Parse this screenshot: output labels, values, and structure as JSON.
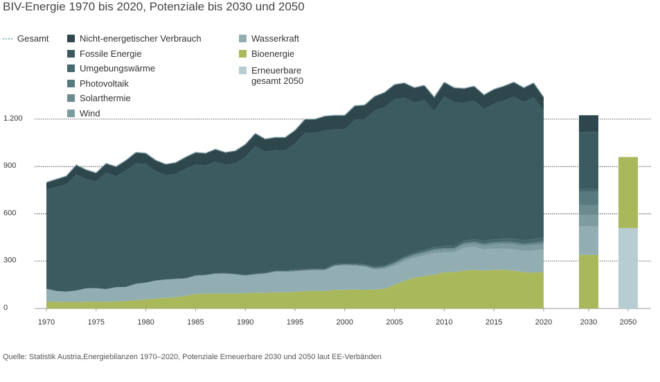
{
  "chart_data": {
    "type": "area",
    "title": "BIV-Energie 1970 bis 2020, Potenziale bis 2030 und 2050",
    "source": "Quelle: Statistik Austria,Energiebilanzen 1970–2020, Potenziale Erneuerbare 2030 und 2050 laut EE-Verbänden",
    "x": [
      1970,
      1971,
      1972,
      1973,
      1974,
      1975,
      1976,
      1977,
      1978,
      1979,
      1980,
      1981,
      1982,
      1983,
      1984,
      1985,
      1986,
      1987,
      1988,
      1989,
      1990,
      1991,
      1992,
      1993,
      1994,
      1995,
      1996,
      1997,
      1998,
      1999,
      2000,
      2001,
      2002,
      2003,
      2004,
      2005,
      2006,
      2007,
      2008,
      2009,
      2010,
      2011,
      2012,
      2013,
      2014,
      2015,
      2016,
      2017,
      2018,
      2019,
      2020
    ],
    "xlim": [
      1970,
      2020
    ],
    "xticks": [
      1970,
      1975,
      1980,
      1985,
      1990,
      1995,
      2000,
      2005,
      2010,
      2015,
      2020
    ],
    "bar_categories": [
      "2030",
      "2050"
    ],
    "ylim": [
      0,
      1450
    ],
    "yticks": [
      0,
      300,
      600,
      900,
      {
        "value": 1200,
        "label": "1.200"
      }
    ],
    "grid": true,
    "series": [
      {
        "name": "Gesamt",
        "color": "#8fb0b8",
        "style": "dotted",
        "values": [
          800,
          820,
          840,
          910,
          880,
          860,
          920,
          900,
          940,
          990,
          985,
          940,
          915,
          925,
          960,
          990,
          985,
          1010,
          990,
          1000,
          1040,
          1110,
          1075,
          1085,
          1085,
          1130,
          1200,
          1200,
          1220,
          1225,
          1225,
          1285,
          1290,
          1345,
          1370,
          1420,
          1430,
          1400,
          1415,
          1340,
          1435,
          1400,
          1395,
          1410,
          1355,
          1390,
          1410,
          1435,
          1400,
          1430,
          1340
        ]
      },
      {
        "name": "Nicht-energetischer Verbrauch",
        "color": "#2d474c",
        "values": [
          45,
          50,
          55,
          60,
          60,
          55,
          60,
          62,
          65,
          70,
          70,
          70,
          70,
          72,
          75,
          78,
          80,
          80,
          80,
          80,
          80,
          82,
          82,
          82,
          85,
          85,
          88,
          88,
          90,
          90,
          90,
          90,
          92,
          92,
          95,
          95,
          95,
          95,
          95,
          90,
          92,
          92,
          92,
          92,
          92,
          92,
          92,
          92,
          92,
          92,
          88
        ],
        "bar_values": [
          105,
          null
        ]
      },
      {
        "name": "Fossile Energie",
        "color": "#3b5b61",
        "values": [
          630,
          659,
          678,
          736,
          692,
          676,
          737,
          703,
          738,
          763,
          751,
          692,
          661,
          664,
          693,
          701,
          691,
          706,
          685,
          700,
          747,
          806,
          766,
          763,
          759,
          800,
          862,
          859,
          878,
          854,
          849,
          910,
          918,
          988,
          1002,
          1027,
          1004,
          950,
          948,
          860,
          947,
          911,
          872,
          879,
          835,
          860,
          875,
          901,
          875,
          898,
          801
        ],
        "bar_values": [
          360,
          null
        ]
      },
      {
        "name": "Umgebungswärme",
        "color": "#46686d",
        "values": [
          0,
          0,
          0,
          0,
          0,
          0,
          0,
          0,
          0,
          0,
          1,
          1,
          1,
          2,
          2,
          3,
          3,
          3,
          3,
          3,
          4,
          4,
          4,
          4,
          5,
          5,
          5,
          5,
          5,
          6,
          6,
          6,
          7,
          7,
          8,
          9,
          10,
          11,
          12,
          13,
          14,
          15,
          16,
          16,
          17,
          18,
          19,
          20,
          21,
          22,
          23
        ],
        "bar_values": [
          20,
          null
        ]
      },
      {
        "name": "Photovoltaik",
        "color": "#587a7e",
        "values": [
          0,
          0,
          0,
          0,
          0,
          0,
          0,
          0,
          0,
          0,
          0,
          0,
          0,
          0,
          0,
          0,
          0,
          0,
          0,
          0,
          0,
          0,
          0,
          0,
          0,
          0,
          0,
          0,
          0,
          0,
          0,
          0,
          0,
          0,
          0,
          0,
          0,
          0,
          0,
          1,
          1,
          1,
          2,
          3,
          4,
          5,
          6,
          7,
          7,
          8,
          10
        ],
        "bar_values": [
          85,
          null
        ]
      },
      {
        "name": "Solarthermie",
        "color": "#6c8b8f",
        "values": [
          0,
          0,
          0,
          0,
          0,
          0,
          0,
          0,
          0,
          0,
          0,
          0,
          0,
          0,
          0,
          1,
          1,
          1,
          2,
          2,
          2,
          3,
          3,
          4,
          4,
          5,
          5,
          5,
          6,
          6,
          6,
          7,
          7,
          8,
          8,
          9,
          9,
          10,
          10,
          10,
          10,
          10,
          10,
          10,
          10,
          10,
          10,
          10,
          10,
          10,
          10
        ],
        "bar_values": [
          65,
          null
        ]
      },
      {
        "name": "Wind",
        "color": "#7e9ca0",
        "values": [
          0,
          0,
          0,
          0,
          0,
          0,
          0,
          0,
          0,
          0,
          0,
          0,
          0,
          0,
          0,
          0,
          0,
          0,
          0,
          0,
          0,
          0,
          0,
          0,
          0,
          0,
          0,
          1,
          1,
          1,
          1,
          2,
          3,
          5,
          7,
          10,
          12,
          14,
          15,
          16,
          16,
          16,
          18,
          20,
          22,
          25,
          28,
          30,
          30,
          32,
          33
        ],
        "bar_values": [
          70,
          null
        ]
      },
      {
        "name": "Wasserkraft",
        "color": "#93aeb2",
        "values": [
          80,
          68,
          65,
          72,
          85,
          85,
          80,
          90,
          90,
          105,
          105,
          115,
          115,
          115,
          110,
          115,
          115,
          125,
          125,
          120,
          110,
          115,
          120,
          130,
          130,
          130,
          130,
          130,
          130,
          150,
          155,
          150,
          145,
          125,
          125,
          120,
          125,
          125,
          130,
          135,
          125,
          125,
          145,
          145,
          135,
          135,
          135,
          135,
          135,
          140,
          145
        ],
        "bar_values": [
          180,
          null
        ]
      },
      {
        "name": "Bioenergie",
        "color": "#a9b85b",
        "values": [
          45,
          43,
          42,
          42,
          43,
          44,
          43,
          45,
          47,
          52,
          58,
          62,
          68,
          72,
          80,
          92,
          95,
          95,
          95,
          95,
          97,
          100,
          100,
          102,
          102,
          105,
          110,
          112,
          110,
          118,
          118,
          120,
          118,
          120,
          125,
          150,
          175,
          195,
          205,
          215,
          230,
          230,
          240,
          245,
          240,
          245,
          245,
          240,
          230,
          228,
          230
        ],
        "bar_values": [
          340,
          450
        ]
      },
      {
        "name": "Erneuerbare gesamt 2050",
        "color": "#b8cdd1",
        "bar_values": [
          null,
          510
        ]
      }
    ]
  }
}
